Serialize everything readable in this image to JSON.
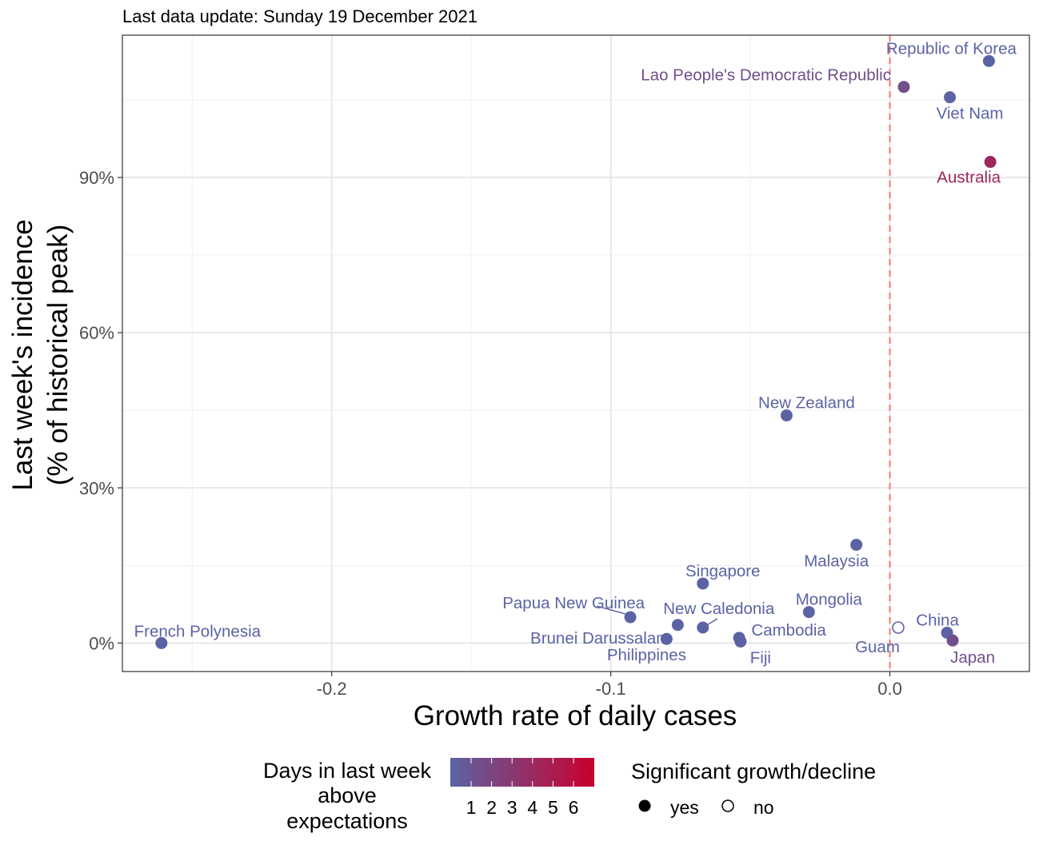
{
  "chart_data": {
    "type": "scatter",
    "subtitle": "Last data update: Sunday 19 December 2021",
    "xlabel": "Growth rate of daily cases",
    "ylabel_line1": "Last week's incidence",
    "ylabel_line2": "(% of historical peak)",
    "xlim": [
      -0.275,
      0.05
    ],
    "ylim": [
      -5.5,
      117.5
    ],
    "x_ticks": [
      -0.2,
      -0.1,
      0.0
    ],
    "x_tick_labels": [
      "-0.2",
      "-0.1",
      "0.0"
    ],
    "y_ticks": [
      0,
      30,
      60,
      90
    ],
    "y_tick_labels": [
      "0%",
      "30%",
      "60%",
      "90%"
    ],
    "grid": true,
    "reference_line": {
      "x": 0.0,
      "color": "#F8766D",
      "style": "dashed"
    },
    "color_scale": {
      "low": "#5B63A4",
      "high": "#C8002E",
      "domain": [
        1,
        6
      ]
    },
    "points": [
      {
        "name": "Republic of Korea",
        "x": 0.0355,
        "y": 112.5,
        "days": 1,
        "significant": true
      },
      {
        "name": "Lao People's Democratic Republic",
        "x": 0.005,
        "y": 107.5,
        "days": 2,
        "significant": true
      },
      {
        "name": "Viet Nam",
        "x": 0.0215,
        "y": 105.5,
        "days": 1,
        "significant": true
      },
      {
        "name": "Australia",
        "x": 0.036,
        "y": 93.0,
        "days": 4,
        "significant": true
      },
      {
        "name": "New Zealand",
        "x": -0.037,
        "y": 44.0,
        "days": 1,
        "significant": true
      },
      {
        "name": "Malaysia",
        "x": -0.012,
        "y": 19.0,
        "days": 1,
        "significant": true
      },
      {
        "name": "Singapore",
        "x": -0.067,
        "y": 11.5,
        "days": 1,
        "significant": true
      },
      {
        "name": "Mongolia",
        "x": -0.029,
        "y": 6.0,
        "days": 1,
        "significant": true
      },
      {
        "name": "Papua New Guinea",
        "x": -0.093,
        "y": 5.0,
        "days": 1,
        "significant": true
      },
      {
        "name": "New Caledonia",
        "x": -0.067,
        "y": 3.0,
        "days": 1,
        "significant": true
      },
      {
        "name": "Brunei Darussalam",
        "x": -0.076,
        "y": 3.5,
        "days": 1,
        "significant": true
      },
      {
        "name": "Guam",
        "x": 0.003,
        "y": 3.0,
        "days": 1,
        "significant": false
      },
      {
        "name": "China",
        "x": 0.0205,
        "y": 2.0,
        "days": 1,
        "significant": true
      },
      {
        "name": "Cambodia",
        "x": -0.054,
        "y": 1.0,
        "days": 1,
        "significant": true
      },
      {
        "name": "Japan",
        "x": 0.0225,
        "y": 0.5,
        "days": 2,
        "significant": true
      },
      {
        "name": "Philippines",
        "x": -0.08,
        "y": 0.8,
        "days": 1,
        "significant": true
      },
      {
        "name": "Fiji",
        "x": -0.0535,
        "y": 0.3,
        "days": 1,
        "significant": true
      },
      {
        "name": "French Polynesia",
        "x": -0.261,
        "y": 0.0,
        "days": 1,
        "significant": true
      }
    ],
    "legend": {
      "color_title_lines": [
        "Days in last week",
        "above",
        "expectations"
      ],
      "color_labels": [
        "1",
        "2",
        "3",
        "4",
        "5",
        "6"
      ],
      "shape_title": "Significant growth/decline",
      "shape_labels": [
        "yes",
        "no"
      ],
      "position": "bottom"
    }
  }
}
